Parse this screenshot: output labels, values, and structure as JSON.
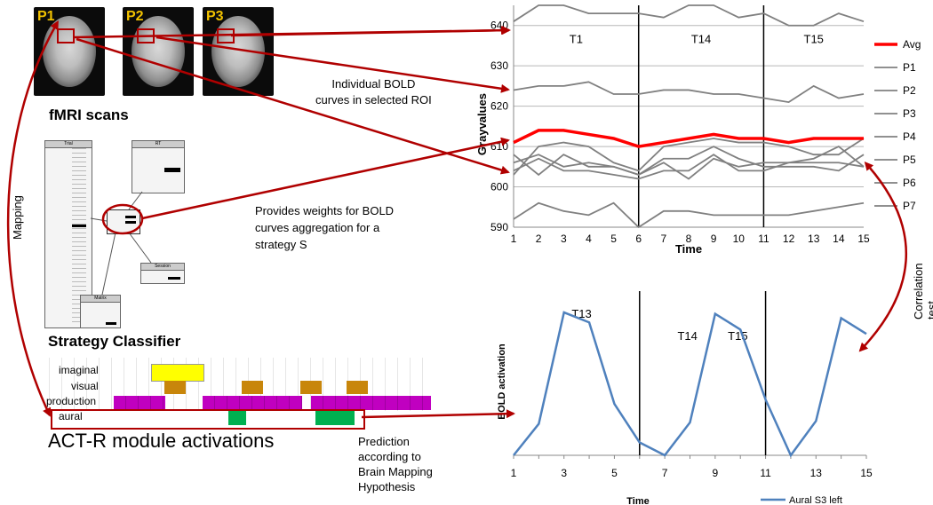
{
  "scans": {
    "heading": "fMRI scans",
    "labels": [
      "P1",
      "P2",
      "P3"
    ]
  },
  "strategy_classifier": {
    "heading": "Strategy Classifier",
    "table_titles": [
      "Trial",
      "RT",
      "Session",
      "Matrix"
    ]
  },
  "actr": {
    "heading": "ACT-R module activations",
    "modules": [
      "imaginal",
      "visual",
      "production",
      "aural"
    ]
  },
  "annotations": {
    "mapping": "Mapping",
    "individual_curves": [
      "Individual BOLD",
      "curves in selected ROI"
    ],
    "weights": [
      "Provides weights for BOLD",
      "curves aggregation for a",
      "strategy S"
    ],
    "prediction": [
      "Prediction",
      "according to",
      "Brain Mapping",
      "Hypothesis"
    ],
    "correlation": "Correlation test"
  },
  "colors": {
    "arrow": "#b00000",
    "avg": "#ff0000",
    "series_gray": "#808080",
    "bold_blue": "#4f81bd",
    "imaginal": "#ffff00",
    "visual": "#c8860b",
    "production": "#c000c0",
    "aural": "#00b050",
    "scan_label": "#f2c200"
  },
  "chart_data": [
    {
      "type": "line",
      "title": "",
      "xlabel": "Time",
      "ylabel": "Grayvalues",
      "x": [
        1,
        2,
        3,
        4,
        5,
        6,
        7,
        8,
        9,
        10,
        11,
        12,
        13,
        14,
        15
      ],
      "ylim": [
        590,
        645
      ],
      "yticks": [
        590,
        600,
        610,
        620,
        630,
        640
      ],
      "grid": true,
      "legend": "right",
      "phase_lines": [
        6,
        11
      ],
      "phase_labels": [
        {
          "label": "T1",
          "x": 3.5
        },
        {
          "label": "T14",
          "x": 8.5
        },
        {
          "label": "T15",
          "x": 13
        }
      ],
      "series": [
        {
          "name": "Avg",
          "color": "#ff0000",
          "values": [
            611,
            614,
            614,
            613,
            612,
            610,
            611,
            612,
            613,
            612,
            612,
            611,
            612,
            612,
            612
          ]
        },
        {
          "name": "P1",
          "color": "#808080",
          "values": [
            641,
            645,
            645,
            643,
            643,
            643,
            642,
            645,
            645,
            642,
            643,
            640,
            640,
            643,
            641
          ]
        },
        {
          "name": "P2",
          "color": "#808080",
          "values": [
            624,
            625,
            625,
            626,
            623,
            623,
            624,
            624,
            623,
            623,
            622,
            621,
            625,
            622,
            623
          ]
        },
        {
          "name": "P3",
          "color": "#808080",
          "values": [
            603,
            610,
            611,
            610,
            606,
            604,
            610,
            611,
            612,
            611,
            611,
            610,
            608,
            608,
            612
          ]
        },
        {
          "name": "P4",
          "color": "#808080",
          "values": [
            606,
            608,
            605,
            606,
            605,
            603,
            607,
            607,
            610,
            607,
            605,
            605,
            605,
            604,
            608
          ]
        },
        {
          "name": "P5",
          "color": "#808080",
          "values": [
            608,
            603,
            608,
            605,
            605,
            603,
            606,
            602,
            607,
            605,
            606,
            606,
            607,
            610,
            605
          ]
        },
        {
          "name": "P6",
          "color": "#808080",
          "values": [
            604,
            607,
            604,
            604,
            603,
            602,
            604,
            604,
            608,
            604,
            604,
            606,
            606,
            606,
            605
          ]
        },
        {
          "name": "P7",
          "color": "#808080",
          "values": [
            592,
            596,
            594,
            593,
            596,
            590,
            594,
            594,
            593,
            593,
            593,
            593,
            594,
            595,
            596
          ]
        }
      ]
    },
    {
      "type": "line",
      "title": "",
      "xlabel": "Time",
      "ylabel": "BOLD activation",
      "x": [
        1,
        2,
        3,
        4,
        5,
        6,
        7,
        8,
        9,
        10,
        11,
        12,
        13,
        14,
        15
      ],
      "ylim": [
        0,
        1
      ],
      "grid": false,
      "legend": "bottom",
      "xticks": [
        1,
        3,
        5,
        7,
        9,
        11,
        13,
        15
      ],
      "phase_lines": [
        6,
        11
      ],
      "phase_labels": [
        {
          "label": "T13",
          "x": 3.7
        },
        {
          "label": "T14",
          "x": 7.9
        },
        {
          "label": "T15",
          "x": 9.9
        }
      ],
      "series": [
        {
          "name": "Aural S3 left",
          "color": "#4f81bd",
          "values": [
            0.0,
            0.22,
            1.0,
            0.93,
            0.36,
            0.09,
            0.0,
            0.23,
            0.99,
            0.88,
            0.39,
            0.0,
            0.24,
            0.96,
            0.85
          ]
        }
      ]
    }
  ]
}
